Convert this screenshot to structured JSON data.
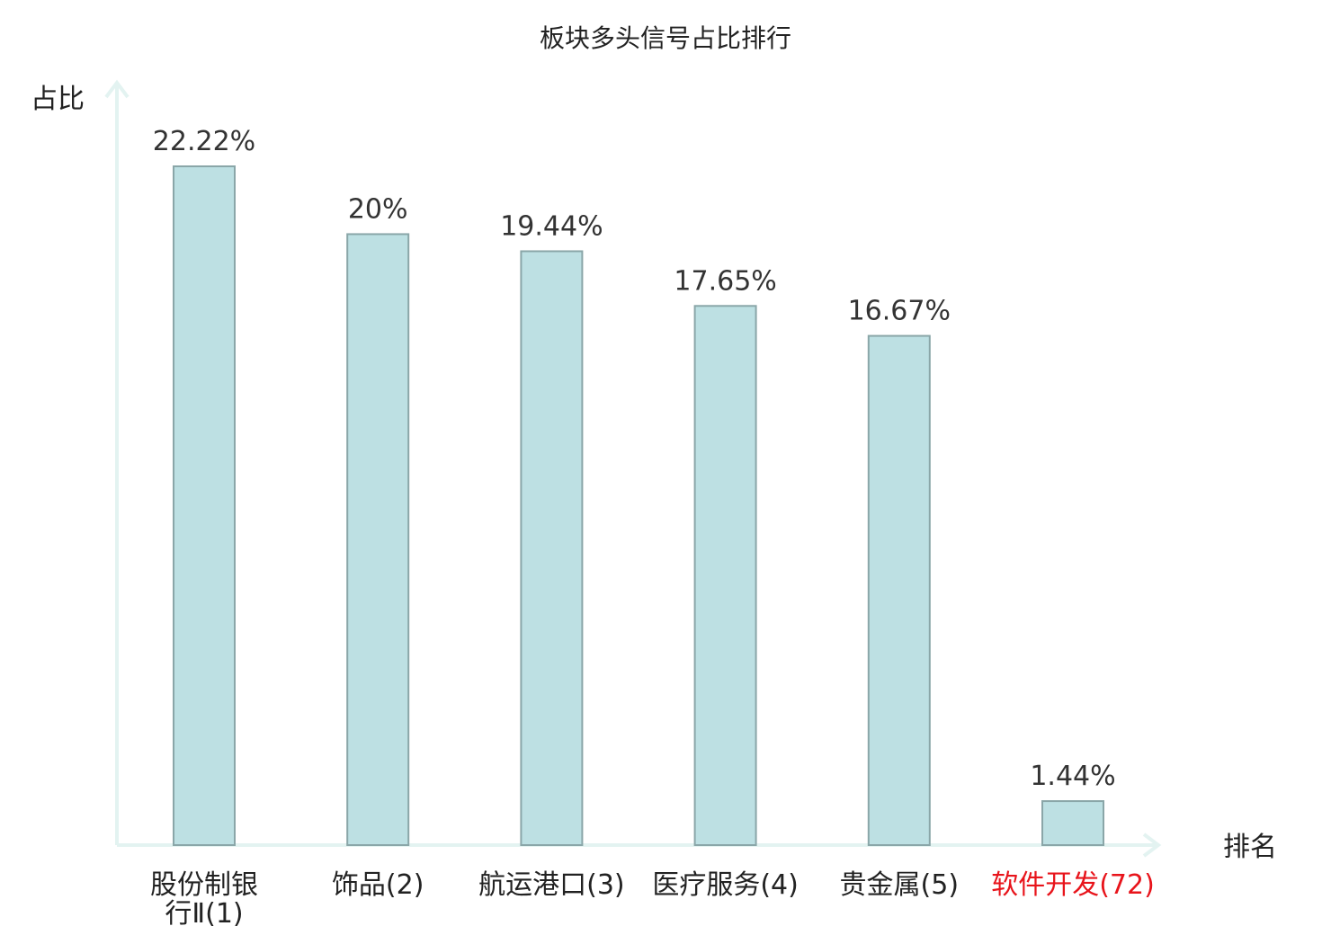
{
  "chart_data": {
    "type": "bar",
    "title": "板块多头信号占比排行",
    "ylabel": "占比",
    "xlabel": "排名",
    "ylim": [
      0,
      22.22
    ],
    "grid": false,
    "legend": "none",
    "categories": [
      {
        "name": "股份制银行Ⅱ",
        "rank": "(1)",
        "highlight": false
      },
      {
        "name": "饰品",
        "rank": "(2)",
        "highlight": false
      },
      {
        "name": "航运港口",
        "rank": "(3)",
        "highlight": false
      },
      {
        "name": "医疗服务",
        "rank": "(4)",
        "highlight": false
      },
      {
        "name": "贵金属",
        "rank": "(5)",
        "highlight": false
      },
      {
        "name": "软件开发",
        "rank": "(72)",
        "highlight": true
      }
    ],
    "values": [
      22.22,
      20,
      19.44,
      17.65,
      16.67,
      1.44
    ],
    "value_labels": [
      "22.22%",
      "20%",
      "19.44%",
      "17.65%",
      "16.67%",
      "1.44%"
    ],
    "colors": {
      "bar_fill": "#bde0e3",
      "bar_stroke": "#8aa6a8",
      "axis": "#e3f3f1",
      "label": "#222222",
      "highlight": "#e8141b"
    }
  }
}
